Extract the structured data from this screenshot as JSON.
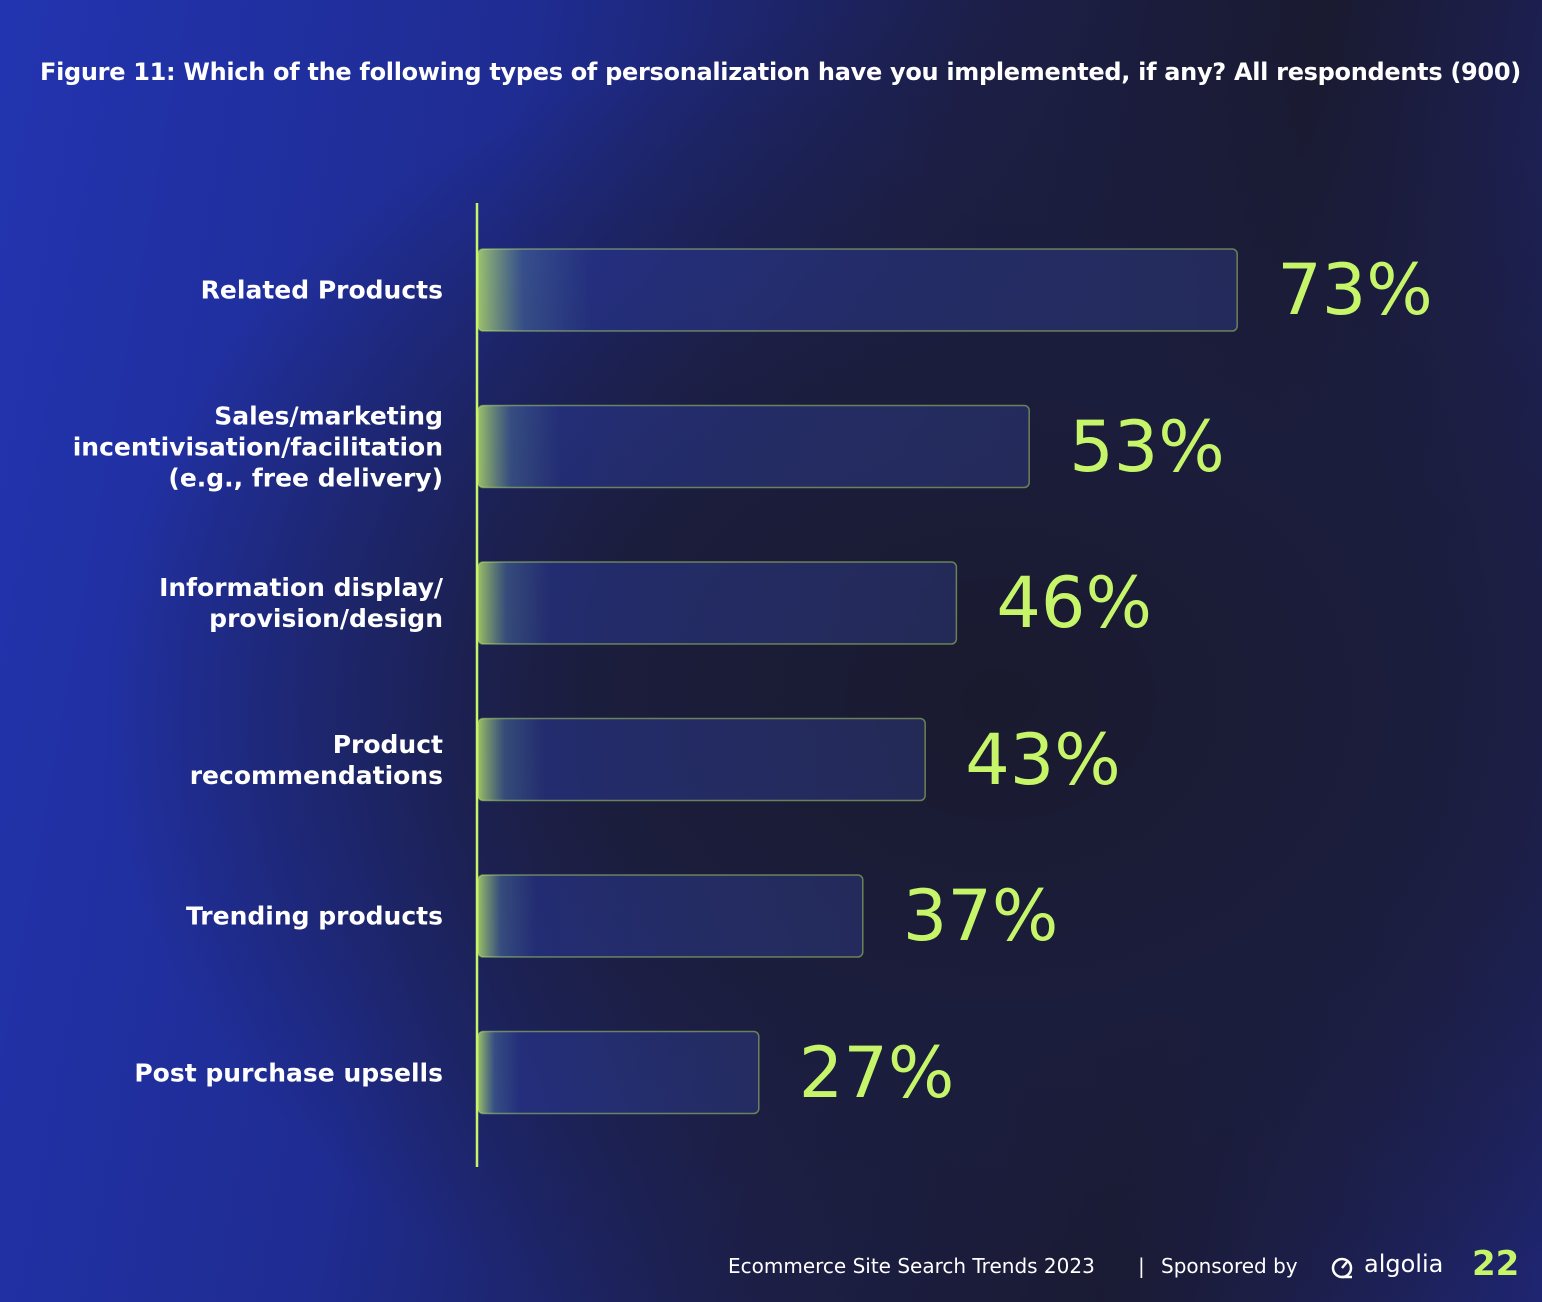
{
  "chart_data": {
    "type": "bar",
    "orientation": "horizontal",
    "title": "Figure 11: Which of the following types of personalization have you implemented, if any? All respondents (900)",
    "categories": [
      "Related Products",
      "Sales/marketing incentivisation/facilitation (e.g., free delivery)",
      "Information display/ provision/design",
      "Product recommendations",
      "Trending products",
      "Post purchase upsells"
    ],
    "values": [
      73,
      53,
      46,
      43,
      37,
      27
    ],
    "value_labels": [
      "73%",
      "53%",
      "46%",
      "43%",
      "37%",
      "27%"
    ],
    "color": "#c6f56a"
  },
  "footer": {
    "report": "Ecommerce Site Search Trends  2023",
    "separator": "|",
    "sponsor": "Sponsored by",
    "brand": "algolia",
    "page_number": "22"
  }
}
